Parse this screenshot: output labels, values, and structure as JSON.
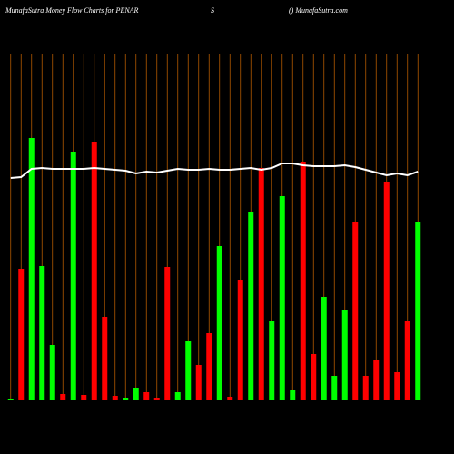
{
  "chart_data": {
    "type": "bar",
    "title": "MunafaSutra  Money Flow  Charts for PENAR",
    "subtitle": "S",
    "source": "() MunafaSutra.com",
    "values": [
      1,
      144,
      288,
      147,
      60,
      6,
      273,
      5,
      284,
      91,
      4,
      2,
      13,
      8,
      2,
      146,
      8,
      65,
      38,
      73,
      169,
      3,
      132,
      207,
      255,
      86,
      224,
      10,
      262,
      50,
      113,
      26,
      99,
      196,
      26,
      43,
      240,
      30,
      87,
      195
    ],
    "colors": [
      "#00ff00",
      "#ff0000",
      "#00ff00",
      "#00ff00",
      "#00ff00",
      "#ff0000",
      "#00ff00",
      "#ff0000",
      "#ff0000",
      "#ff0000",
      "#ff0000",
      "#00ff00",
      "#00ff00",
      "#ff0000",
      "#ff0000",
      "#ff0000",
      "#00ff00",
      "#00ff00",
      "#ff0000",
      "#ff0000",
      "#00ff00",
      "#ff0000",
      "#ff0000",
      "#00ff00",
      "#ff0000",
      "#00ff00",
      "#00ff00",
      "#00ff00",
      "#ff0000",
      "#ff0000",
      "#00ff00",
      "#00ff00",
      "#00ff00",
      "#ff0000",
      "#ff0000",
      "#ff0000",
      "#ff0000",
      "#ff0000",
      "#ff0000",
      "#00ff00"
    ],
    "line_values": [
      244,
      245,
      254,
      255,
      254,
      254,
      254,
      254,
      255,
      254,
      253,
      252,
      249,
      251,
      250,
      252,
      254,
      253,
      253,
      254,
      253,
      253,
      254,
      255,
      253,
      255,
      260,
      260,
      258,
      257,
      257,
      257,
      258,
      256,
      253,
      250,
      247,
      249,
      247,
      251
    ],
    "line_color": "#ffffff",
    "grid_color": "#b35900",
    "ylim": [
      0,
      300
    ]
  }
}
